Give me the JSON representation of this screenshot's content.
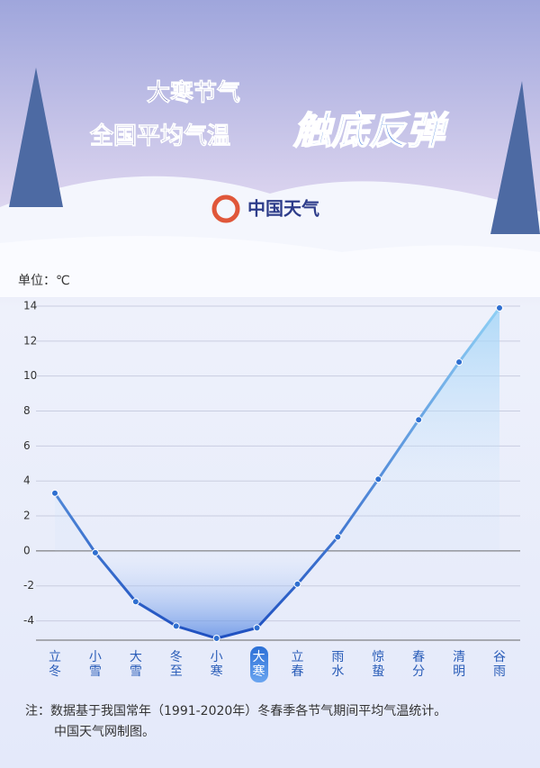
{
  "title_line1": "大寒节气",
  "title_line2": "全国平均气温",
  "title_emphasis": "触底反弹",
  "logo_text": "中国天气",
  "chart_data": {
    "type": "line",
    "unit_label": "单位：℃",
    "categories": [
      "立冬",
      "小雪",
      "大雪",
      "冬至",
      "小寒",
      "大寒",
      "立春",
      "雨水",
      "惊蛰",
      "春分",
      "清明",
      "谷雨"
    ],
    "series": [
      {
        "name": "全国平均气温",
        "color": "#2f6fd0",
        "values": [
          3.3,
          -0.1,
          -2.9,
          -4.3,
          -5.0,
          -4.4,
          -1.9,
          0.8,
          4.1,
          7.5,
          10.8,
          13.9
        ]
      }
    ],
    "highlight_index": 5,
    "ylim": [
      -5,
      14
    ],
    "yticks": [
      -4,
      -2,
      0,
      2,
      4,
      6,
      8,
      10,
      12,
      14
    ],
    "grid": true
  },
  "note": [
    "注：数据基于我国常年（1991-2020年）冬春季各节气期间平均气温统计。",
    "中国天气网制图。"
  ]
}
